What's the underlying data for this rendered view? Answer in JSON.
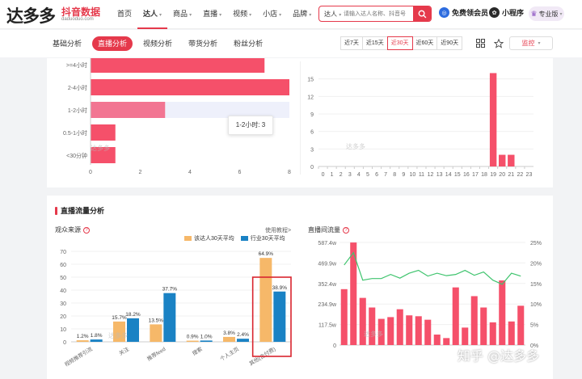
{
  "header": {
    "logo_text": "达多多",
    "logo_sub": "抖音数据",
    "logo_domain": "daduoduo.com",
    "nav": [
      {
        "label": "首页",
        "caret": false
      },
      {
        "label": "达人",
        "caret": true,
        "active": true
      },
      {
        "label": "商品",
        "caret": true
      },
      {
        "label": "直播",
        "caret": true
      },
      {
        "label": "视频",
        "caret": true
      },
      {
        "label": "小店",
        "caret": true
      },
      {
        "label": "品牌",
        "caret": true
      }
    ],
    "search_type": "达人",
    "search_placeholder": "请输入达人名称、抖音号",
    "vip_label": "免费领会员",
    "mini_label": "小程序",
    "pro_label": "专业版"
  },
  "subnav": {
    "tabs": [
      {
        "label": "基础分析"
      },
      {
        "label": "直播分析",
        "active": true
      },
      {
        "label": "视频分析"
      },
      {
        "label": "带货分析"
      },
      {
        "label": "粉丝分析"
      }
    ],
    "ranges": [
      {
        "label": "近7天"
      },
      {
        "label": "近15天"
      },
      {
        "label": "近30天",
        "active": true
      },
      {
        "label": "近60天"
      },
      {
        "label": "近90天"
      }
    ],
    "compare_label": "监控"
  },
  "duration_chart": {
    "categories": [
      ">=4小时",
      "2-4小时",
      "1-2小时",
      "0.5-1小时",
      "<30分钟"
    ],
    "values": [
      7,
      8,
      3,
      1,
      1
    ],
    "x_ticks": [
      "0",
      "2",
      "4",
      "6",
      "8"
    ],
    "xlim": [
      0,
      8
    ],
    "tooltip": "1-2小时: 3",
    "color": "#f5506a"
  },
  "hour_chart": {
    "x_ticks": [
      "0",
      "1",
      "2",
      "3",
      "4",
      "5",
      "6",
      "7",
      "8",
      "9",
      "10",
      "11",
      "12",
      "13",
      "14",
      "15",
      "16",
      "17",
      "18",
      "19",
      "20",
      "21",
      "22",
      "23"
    ],
    "y_ticks": [
      "0",
      "3",
      "6",
      "9",
      "12",
      "15"
    ],
    "values": [
      0,
      0,
      0,
      0,
      0,
      0,
      0,
      0,
      0,
      0,
      0,
      0,
      0,
      0,
      0,
      0,
      0,
      0,
      0,
      16,
      2,
      2,
      0,
      0
    ],
    "ylim": [
      0,
      18
    ],
    "color": "#f5506a"
  },
  "section": {
    "title": "直播流量分析"
  },
  "source_chart": {
    "label": "观众来源",
    "help_link": "使用教程>",
    "legend": [
      {
        "name": "该达人30天平均",
        "color": "#f6b869"
      },
      {
        "name": "行业30天平均",
        "color": "#1a82c4"
      }
    ],
    "categories": [
      "视频推荐引流",
      "关注",
      "推荐feed",
      "搜索",
      "个人主页",
      "其他(含付费)"
    ],
    "series_a": [
      1.2,
      15.7,
      13.5,
      0.9,
      3.8,
      64.9
    ],
    "series_b": [
      1.8,
      18.2,
      37.7,
      1.0,
      2.4,
      38.9
    ],
    "labels_a": [
      "1.2%",
      "15.7%",
      "13.5%",
      "0.9%",
      "3.8%",
      "64.9%"
    ],
    "labels_b": [
      "1.8%",
      "18.2%",
      "37.7%",
      "1.0%",
      "2.4%",
      "38.9%"
    ],
    "y_ticks": [
      "0",
      "10",
      "20",
      "30",
      "40",
      "50",
      "60",
      "70"
    ],
    "ylim": [
      0,
      70
    ],
    "highlight_color": "#d9252e"
  },
  "flow_chart": {
    "label": "直播间流量",
    "y_left_ticks": [
      "0",
      "117.5w",
      "234.9w",
      "352.4w",
      "469.9w",
      "587.4w"
    ],
    "y_right_ticks": [
      "0%",
      "5%",
      "10%",
      "15%",
      "20%",
      "25%"
    ],
    "bars": [
      320,
      587,
      270,
      215,
      150,
      160,
      205,
      170,
      165,
      145,
      60,
      40,
      330,
      100,
      280,
      215,
      130,
      370,
      135,
      225
    ],
    "line": [
      19.5,
      22.5,
      15.8,
      16.2,
      16.2,
      17.2,
      16.3,
      17.5,
      18.2,
      16.8,
      17.5,
      16.9,
      17.2,
      18.2,
      17.0,
      17.8,
      15.8,
      14.8,
      17.5,
      16.8
    ],
    "ylim_left": [
      0,
      587.4
    ],
    "ylim_right": [
      0,
      25
    ],
    "bar_color": "#f5506a",
    "line_color": "#3fc46e"
  },
  "watermarks": {
    "brand": "达多多",
    "footer": "知乎 @达多多"
  }
}
